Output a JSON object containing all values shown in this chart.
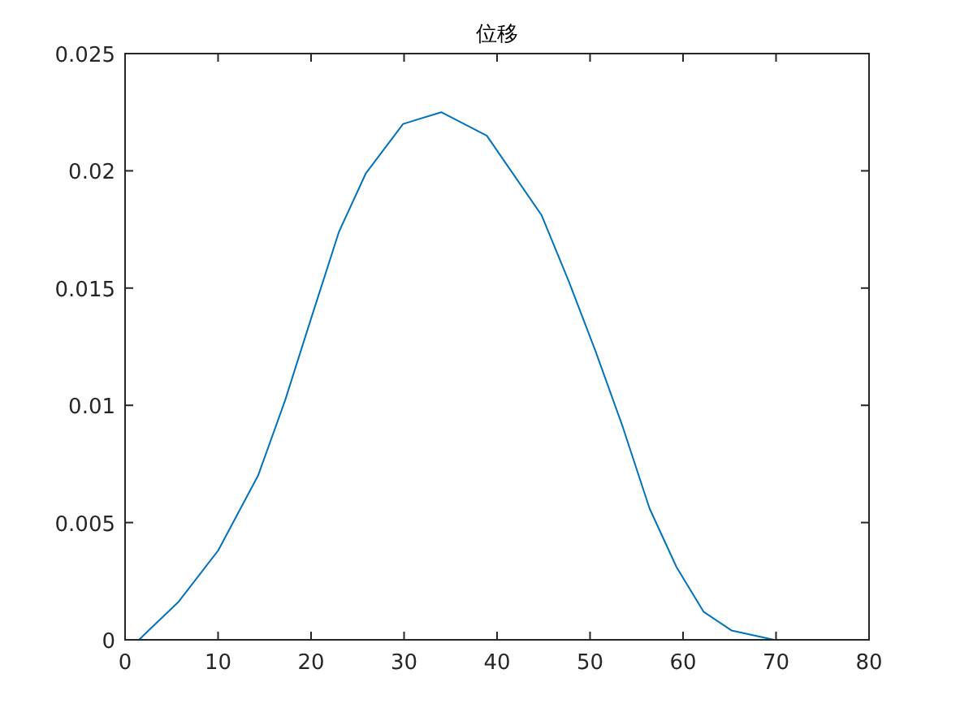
{
  "chart_data": {
    "type": "line",
    "title": "位移",
    "x": [
      1.5,
      2.8,
      5.7,
      10,
      14.3,
      17.2,
      20,
      23,
      25.9,
      29.9,
      34,
      38.9,
      44.8,
      47.7,
      50.6,
      53.5,
      56.4,
      59.3,
      62.2,
      65.2,
      69.8
    ],
    "series": [
      {
        "color": "#0072bd",
        "values": [
          0,
          0.0005,
          0.0016,
          0.0038,
          0.007,
          0.0102,
          0.0137,
          0.0174,
          0.0199,
          0.022,
          0.0225,
          0.0215,
          0.0181,
          0.0153,
          0.0123,
          0.0091,
          0.0056,
          0.0031,
          0.0012,
          0.0004,
          0
        ]
      }
    ],
    "xlim": [
      0,
      80
    ],
    "xticks": [
      0,
      10,
      20,
      30,
      40,
      50,
      60,
      70,
      80
    ],
    "ylim": [
      0,
      0.025
    ],
    "yticks": [
      0,
      0.005,
      0.01,
      0.015,
      0.02,
      0.025
    ]
  }
}
